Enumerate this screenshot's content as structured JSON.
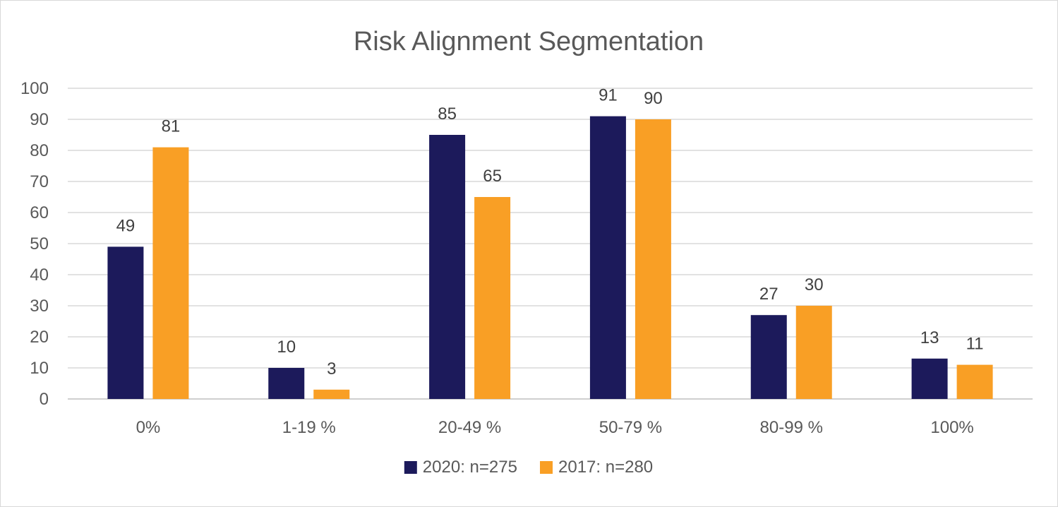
{
  "chart_data": {
    "type": "bar",
    "title": "Risk Alignment Segmentation",
    "xlabel": "",
    "ylabel": "",
    "categories": [
      "0%",
      "1-19 %",
      "20-49 %",
      "50-79 %",
      "80-99 %",
      "100%"
    ],
    "series": [
      {
        "name": "2020: n=275",
        "color": "#1c1a5b",
        "values": [
          49,
          10,
          85,
          91,
          27,
          13
        ]
      },
      {
        "name": "2017: n=280",
        "color": "#f99f25",
        "values": [
          81,
          3,
          65,
          90,
          30,
          11
        ]
      }
    ],
    "ylim": [
      0,
      100
    ],
    "yticks": [
      0,
      10,
      20,
      30,
      40,
      50,
      60,
      70,
      80,
      90,
      100
    ],
    "grid": true,
    "legend_position": "bottom",
    "data_labels": true
  }
}
